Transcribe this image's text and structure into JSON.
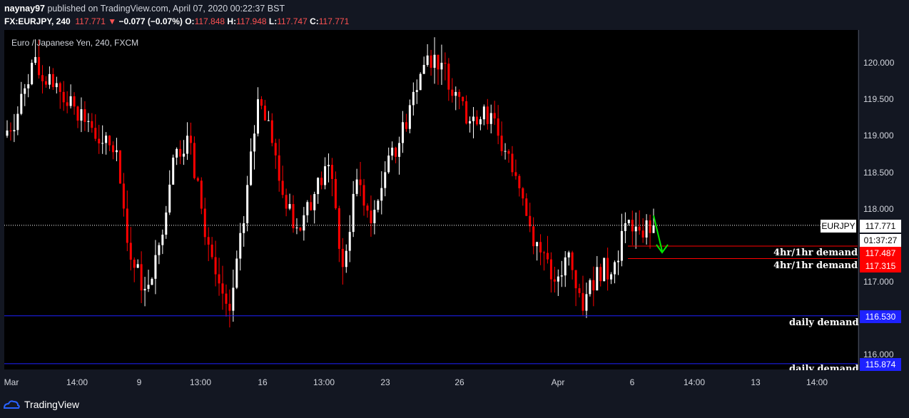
{
  "header": {
    "author": "naynay97",
    "published_text": "published on TradingView.com, April 07, 2020 00:22:37 BST",
    "symbol": "FX:EURJPY, 240",
    "last": "117.771",
    "change": "−0.077 (−0.07%)",
    "o_label": "O:",
    "o": "117.848",
    "h_label": "H:",
    "h": "117.948",
    "l_label": "L:",
    "l": "117.747",
    "c_label": "C:",
    "c": "117.771"
  },
  "chart_title": "Euro / Japanese Yen, 240, FXCM",
  "brand": "TradingView",
  "price_axis": [
    "120.000",
    "119.500",
    "119.000",
    "118.500",
    "118.000",
    "117.000",
    "116.000"
  ],
  "time_axis": [
    "Mar",
    "14:00",
    "9",
    "13:00",
    "16",
    "13:00",
    "23",
    "26",
    "Apr",
    "6",
    "14:00",
    "13",
    "14:00"
  ],
  "labels": {
    "symbol_tag": "EURJPY",
    "last_price": "117.771",
    "countdown": "01:37:27",
    "demand1_price": "117.487",
    "demand2_price": "117.315",
    "daily1_price": "116.530",
    "daily2_price": "115.874",
    "demand1_text": "4hr/1hr demand",
    "demand2_text": "4hr/1hr demand",
    "daily1_text": "daily demand",
    "daily2_text": "daily demand"
  },
  "colors": {
    "up": "#ffffff",
    "down": "#ff0000",
    "demand_line": "#ff0000",
    "daily_line": "#1e22ff",
    "arrow": "#00e600"
  },
  "chart_data": {
    "type": "candlestick",
    "title": "Euro / Japanese Yen, 240, FXCM",
    "ylim": [
      115.85,
      120.3
    ],
    "levels": [
      {
        "name": "4hr/1hr demand",
        "value": 117.487
      },
      {
        "name": "4hr/1hr demand",
        "value": 117.315
      },
      {
        "name": "daily demand",
        "value": 116.53
      },
      {
        "name": "daily demand",
        "value": 115.874
      }
    ],
    "last_price": 117.771,
    "ohlc_approx": [
      [
        119.0,
        119.4,
        118.7,
        119.3
      ],
      [
        119.3,
        120.2,
        119.2,
        120.0
      ],
      [
        120.0,
        120.3,
        119.5,
        119.7
      ],
      [
        119.7,
        119.9,
        119.4,
        119.6
      ],
      [
        119.6,
        119.7,
        119.2,
        119.4
      ],
      [
        119.4,
        119.6,
        119.1,
        119.2
      ],
      [
        119.2,
        119.3,
        118.8,
        118.9
      ],
      [
        118.9,
        119.0,
        118.7,
        118.8
      ],
      [
        118.8,
        118.6,
        117.2,
        117.3
      ],
      [
        117.3,
        117.5,
        116.4,
        116.9
      ],
      [
        116.9,
        117.6,
        116.1,
        117.5
      ],
      [
        117.5,
        118.8,
        117.3,
        118.7
      ],
      [
        118.7,
        119.3,
        118.3,
        119.0
      ],
      [
        119.0,
        119.2,
        117.8,
        118.0
      ],
      [
        118.0,
        118.4,
        116.9,
        117.1
      ],
      [
        117.1,
        117.5,
        116.3,
        116.6
      ],
      [
        116.6,
        117.9,
        116.5,
        117.8
      ],
      [
        117.8,
        119.8,
        117.6,
        119.5
      ],
      [
        119.5,
        119.8,
        118.6,
        118.9
      ],
      [
        118.9,
        119.1,
        117.6,
        118.0
      ],
      [
        118.0,
        118.5,
        117.4,
        117.7
      ],
      [
        117.7,
        118.4,
        117.3,
        118.2
      ],
      [
        118.2,
        118.9,
        117.9,
        118.6
      ],
      [
        118.6,
        118.9,
        117.0,
        117.2
      ],
      [
        117.2,
        118.6,
        116.9,
        118.4
      ],
      [
        118.4,
        118.8,
        117.6,
        117.8
      ],
      [
        117.8,
        118.6,
        117.4,
        118.5
      ],
      [
        118.5,
        119.2,
        118.2,
        118.9
      ],
      [
        118.9,
        120.0,
        118.8,
        119.6
      ],
      [
        119.6,
        120.3,
        119.4,
        120.1
      ],
      [
        120.1,
        120.3,
        119.7,
        120.0
      ],
      [
        120.0,
        120.2,
        119.4,
        119.6
      ],
      [
        119.6,
        119.9,
        119.0,
        119.2
      ],
      [
        119.2,
        119.6,
        118.8,
        119.4
      ],
      [
        119.4,
        119.5,
        118.8,
        119.0
      ],
      [
        119.0,
        119.2,
        118.3,
        118.5
      ],
      [
        118.5,
        118.7,
        117.8,
        117.9
      ],
      [
        117.9,
        118.2,
        117.2,
        117.4
      ],
      [
        117.4,
        117.8,
        116.9,
        117.0
      ],
      [
        117.0,
        117.6,
        116.7,
        117.4
      ],
      [
        117.4,
        117.6,
        116.3,
        116.6
      ],
      [
        116.6,
        117.3,
        116.5,
        117.2
      ],
      [
        117.2,
        117.5,
        116.9,
        117.1
      ],
      [
        117.1,
        117.9,
        117.0,
        117.8
      ],
      [
        117.8,
        118.3,
        117.5,
        117.7
      ],
      [
        117.7,
        117.95,
        117.5,
        117.771
      ]
    ]
  }
}
